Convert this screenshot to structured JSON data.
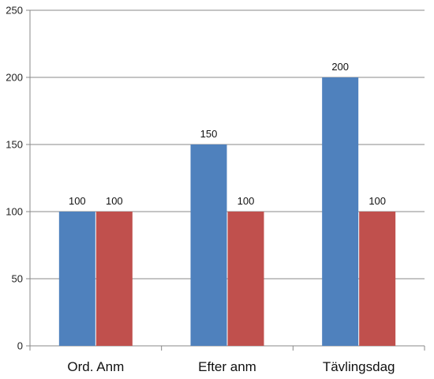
{
  "chart_data": {
    "type": "bar",
    "categories": [
      "Ord. Anm",
      "Efter anm",
      "Tävlingsdag"
    ],
    "series": [
      {
        "values": [
          100,
          150,
          200
        ],
        "color": "#4f81bd"
      },
      {
        "values": [
          100,
          100,
          100
        ],
        "color": "#c0504d"
      }
    ],
    "ylim": [
      0,
      250
    ],
    "yticks": [
      0,
      50,
      100,
      150,
      200,
      250
    ],
    "grid": true,
    "data_labels": true,
    "gridline_color": "#888888",
    "axis_color": "#888888"
  }
}
